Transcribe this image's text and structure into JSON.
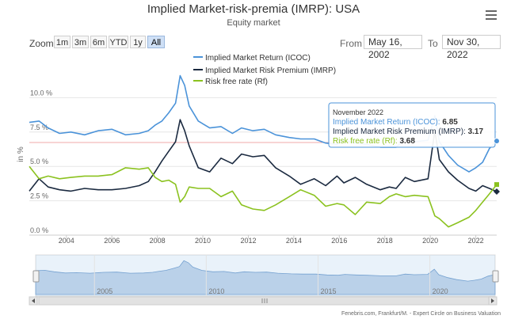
{
  "header": {
    "title": "Implied Market-risk-premia (IMRP): USA",
    "subtitle": "Equity market",
    "menu_icon": "hamburger-menu-icon"
  },
  "range_selector": {
    "zoom_label": "Zoom",
    "buttons": [
      "1m",
      "3m",
      "6m",
      "YTD",
      "1y",
      "All"
    ],
    "active": "All",
    "from_label": "From",
    "from_value": "May 16, 2002",
    "to_label": "To",
    "to_value": "Nov 30, 2022"
  },
  "tooltip": {
    "date": "November 2022",
    "rows": [
      {
        "label": "Implied Market Return (ICOC):",
        "value": "6.85"
      },
      {
        "label": "Implied Market Risk Premium (IMRP):",
        "value": "3.17"
      },
      {
        "label": "Risk free rate (Rf):",
        "value": "3.68"
      }
    ]
  },
  "navigator": {
    "year_labels": [
      "2005",
      "2010",
      "2015",
      "2020"
    ],
    "left_arrow": "arrow-left-icon",
    "right_arrow": "arrow-right-icon",
    "grip": "scrollbar-grip-icon"
  },
  "footer": {
    "credit": "Fenebris.com, Frankfurt/M. - Expert Circle on Business Valuation"
  },
  "colors": {
    "icoc": "#4b93d9",
    "imrp": "#1b2a40",
    "rf": "#8bc21f",
    "grid": "#e6e6e6",
    "plot_line": "#f0a8a8"
  },
  "chart_data": {
    "type": "line",
    "title": "Implied Market-risk-premia (IMRP): USA",
    "subtitle": "Equity market",
    "xlabel": "",
    "ylabel": "in %",
    "x_range": [
      2002.37,
      2022.92
    ],
    "ylim": [
      0,
      12.5
    ],
    "y_ticks": [
      0,
      2.5,
      5,
      7.5,
      10
    ],
    "y_tick_labels": [
      "0.0 %",
      "2.5 %",
      "5.0 %",
      "7.5 %",
      "10.0 %"
    ],
    "x_ticks": [
      2004,
      2006,
      2008,
      2010,
      2012,
      2014,
      2016,
      2018,
      2020,
      2022
    ],
    "x_tick_labels": [
      "2004",
      "2006",
      "2008",
      "2010",
      "2012",
      "2014",
      "2016",
      "2018",
      "2020",
      "2022"
    ],
    "legend_position": "top-left",
    "series": [
      {
        "name": "Implied Market Return (ICOC)",
        "points": [
          [
            2002.37,
            8.2
          ],
          [
            2002.8,
            8.3
          ],
          [
            2003.2,
            7.8
          ],
          [
            2003.7,
            7.4
          ],
          [
            2004.2,
            7.5
          ],
          [
            2004.8,
            7.3
          ],
          [
            2005.4,
            7.6
          ],
          [
            2006.0,
            7.7
          ],
          [
            2006.6,
            7.3
          ],
          [
            2007.2,
            7.4
          ],
          [
            2007.6,
            7.6
          ],
          [
            2007.9,
            8.0
          ],
          [
            2008.2,
            8.3
          ],
          [
            2008.5,
            8.9
          ],
          [
            2008.8,
            9.6
          ],
          [
            2009.0,
            11.6
          ],
          [
            2009.2,
            10.9
          ],
          [
            2009.4,
            9.4
          ],
          [
            2009.8,
            8.3
          ],
          [
            2010.3,
            7.8
          ],
          [
            2010.8,
            7.9
          ],
          [
            2011.3,
            7.4
          ],
          [
            2011.7,
            7.8
          ],
          [
            2012.2,
            7.6
          ],
          [
            2012.7,
            7.7
          ],
          [
            2013.2,
            7.3
          ],
          [
            2013.8,
            7.1
          ],
          [
            2014.3,
            7.0
          ],
          [
            2014.9,
            7.0
          ],
          [
            2015.4,
            6.7
          ],
          [
            2015.9,
            6.6
          ],
          [
            2016.2,
            6.9
          ],
          [
            2016.7,
            6.7
          ],
          [
            2017.2,
            6.6
          ],
          [
            2017.8,
            6.4
          ],
          [
            2018.2,
            6.4
          ],
          [
            2018.5,
            6.4
          ],
          [
            2018.9,
            7.0
          ],
          [
            2019.3,
            6.8
          ],
          [
            2019.9,
            6.9
          ],
          [
            2020.2,
            8.7
          ],
          [
            2020.4,
            6.8
          ],
          [
            2020.8,
            5.8
          ],
          [
            2021.2,
            5.1
          ],
          [
            2021.7,
            4.6
          ],
          [
            2022.0,
            4.9
          ],
          [
            2022.3,
            5.3
          ],
          [
            2022.6,
            6.3
          ],
          [
            2022.92,
            6.85
          ]
        ]
      },
      {
        "name": "Implied Market Risk Premium (IMRP)",
        "points": [
          [
            2002.37,
            3.2
          ],
          [
            2002.8,
            4.1
          ],
          [
            2003.2,
            3.5
          ],
          [
            2003.7,
            3.3
          ],
          [
            2004.2,
            3.2
          ],
          [
            2004.8,
            3.4
          ],
          [
            2005.4,
            3.3
          ],
          [
            2006.0,
            3.3
          ],
          [
            2006.6,
            3.4
          ],
          [
            2007.2,
            3.6
          ],
          [
            2007.6,
            3.9
          ],
          [
            2007.9,
            4.6
          ],
          [
            2008.2,
            5.4
          ],
          [
            2008.5,
            6.1
          ],
          [
            2008.8,
            6.8
          ],
          [
            2009.0,
            8.4
          ],
          [
            2009.2,
            7.6
          ],
          [
            2009.4,
            6.5
          ],
          [
            2009.8,
            4.9
          ],
          [
            2010.3,
            4.6
          ],
          [
            2010.8,
            5.6
          ],
          [
            2011.3,
            5.2
          ],
          [
            2011.7,
            5.9
          ],
          [
            2012.2,
            5.7
          ],
          [
            2012.7,
            5.8
          ],
          [
            2013.2,
            4.9
          ],
          [
            2013.8,
            4.3
          ],
          [
            2014.3,
            3.7
          ],
          [
            2014.9,
            4.1
          ],
          [
            2015.4,
            3.6
          ],
          [
            2015.9,
            4.3
          ],
          [
            2016.2,
            3.8
          ],
          [
            2016.7,
            4.2
          ],
          [
            2017.2,
            3.7
          ],
          [
            2017.8,
            3.3
          ],
          [
            2018.2,
            3.5
          ],
          [
            2018.5,
            3.4
          ],
          [
            2018.9,
            4.2
          ],
          [
            2019.3,
            3.9
          ],
          [
            2019.9,
            4.1
          ],
          [
            2020.2,
            7.6
          ],
          [
            2020.4,
            5.5
          ],
          [
            2020.8,
            4.6
          ],
          [
            2021.2,
            4.0
          ],
          [
            2021.7,
            3.4
          ],
          [
            2022.0,
            3.2
          ],
          [
            2022.3,
            3.6
          ],
          [
            2022.6,
            3.4
          ],
          [
            2022.92,
            3.17
          ]
        ]
      },
      {
        "name": "Risk free rate (Rf)",
        "points": [
          [
            2002.37,
            5.0
          ],
          [
            2002.8,
            4.1
          ],
          [
            2003.2,
            4.3
          ],
          [
            2003.7,
            4.1
          ],
          [
            2004.2,
            4.2
          ],
          [
            2004.8,
            4.3
          ],
          [
            2005.4,
            4.3
          ],
          [
            2006.0,
            4.4
          ],
          [
            2006.6,
            4.9
          ],
          [
            2007.2,
            4.8
          ],
          [
            2007.6,
            4.9
          ],
          [
            2007.9,
            4.2
          ],
          [
            2008.2,
            3.9
          ],
          [
            2008.5,
            4.0
          ],
          [
            2008.8,
            3.7
          ],
          [
            2009.0,
            2.4
          ],
          [
            2009.2,
            2.8
          ],
          [
            2009.4,
            3.5
          ],
          [
            2009.8,
            3.4
          ],
          [
            2010.3,
            3.4
          ],
          [
            2010.8,
            2.8
          ],
          [
            2011.3,
            3.2
          ],
          [
            2011.7,
            2.2
          ],
          [
            2012.2,
            1.9
          ],
          [
            2012.7,
            1.8
          ],
          [
            2013.2,
            2.2
          ],
          [
            2013.8,
            2.8
          ],
          [
            2014.3,
            3.3
          ],
          [
            2014.9,
            2.9
          ],
          [
            2015.4,
            2.1
          ],
          [
            2015.9,
            2.3
          ],
          [
            2016.2,
            2.2
          ],
          [
            2016.7,
            1.5
          ],
          [
            2017.2,
            2.4
          ],
          [
            2017.8,
            2.3
          ],
          [
            2018.2,
            2.8
          ],
          [
            2018.5,
            3.0
          ],
          [
            2018.9,
            2.8
          ],
          [
            2019.3,
            2.9
          ],
          [
            2019.9,
            2.8
          ],
          [
            2020.2,
            1.4
          ],
          [
            2020.4,
            1.2
          ],
          [
            2020.8,
            0.6
          ],
          [
            2021.2,
            0.9
          ],
          [
            2021.7,
            1.3
          ],
          [
            2022.0,
            1.8
          ],
          [
            2022.3,
            2.4
          ],
          [
            2022.6,
            3.0
          ],
          [
            2022.92,
            3.68
          ]
        ]
      }
    ]
  }
}
